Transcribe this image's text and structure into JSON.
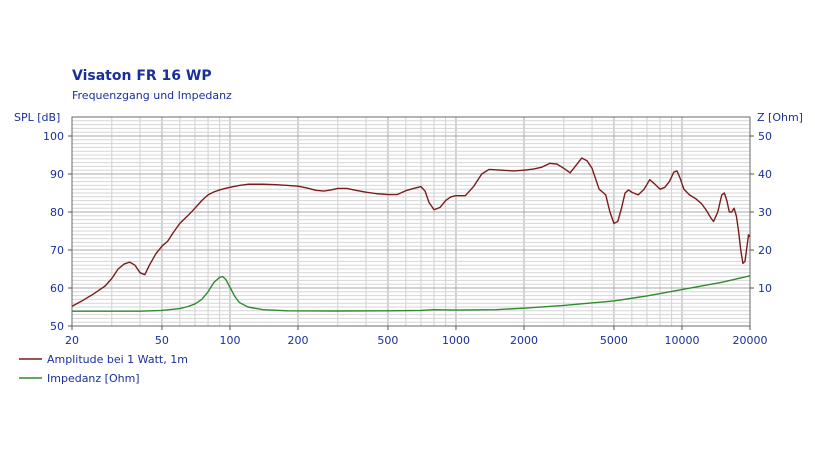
{
  "chart_data": {
    "type": "line",
    "title": "Visaton FR 16 WP",
    "subtitle": "Frequenzgang und Impedanz",
    "ylabel_left": "SPL [dB]",
    "ylabel_right": "Z [Ohm]",
    "x_scale": "log",
    "xlim": [
      20,
      20000
    ],
    "ylim_left": [
      50,
      105
    ],
    "ylim_right": [
      0,
      55
    ],
    "x_ticks": [
      20,
      50,
      100,
      200,
      500,
      1000,
      2000,
      5000,
      10000,
      20000
    ],
    "x_tick_labels": [
      "20",
      "50",
      "100",
      "200",
      "500",
      "1000",
      "2000",
      "5000",
      "10000",
      "20000"
    ],
    "y_ticks_left": [
      50,
      60,
      70,
      80,
      90,
      100
    ],
    "y_tick_labels_left": [
      "50",
      "60",
      "70",
      "80",
      "90",
      "100"
    ],
    "y_ticks_right": [
      10,
      20,
      30,
      40,
      50
    ],
    "y_tick_labels_right": [
      "10",
      "20",
      "30",
      "40",
      "50"
    ],
    "grid": true,
    "legend_position": "bottom-left",
    "series": [
      {
        "name": "Amplitude bei 1 Watt, 1m",
        "axis": "left",
        "color": "#7a1c1c",
        "points": [
          [
            20,
            55.2
          ],
          [
            22,
            56.5
          ],
          [
            25,
            58.5
          ],
          [
            28,
            60.5
          ],
          [
            30,
            62.5
          ],
          [
            32,
            65
          ],
          [
            34,
            66.3
          ],
          [
            36,
            66.8
          ],
          [
            38,
            66
          ],
          [
            40,
            64
          ],
          [
            42,
            63.5
          ],
          [
            44,
            66
          ],
          [
            47,
            69
          ],
          [
            50,
            71
          ],
          [
            53,
            72.3
          ],
          [
            56,
            74.5
          ],
          [
            60,
            77
          ],
          [
            65,
            79
          ],
          [
            70,
            81
          ],
          [
            75,
            83
          ],
          [
            80,
            84.5
          ],
          [
            85,
            85.3
          ],
          [
            90,
            85.8
          ],
          [
            95,
            86.2
          ],
          [
            100,
            86.5
          ],
          [
            110,
            87
          ],
          [
            120,
            87.3
          ],
          [
            140,
            87.3
          ],
          [
            160,
            87.2
          ],
          [
            180,
            87
          ],
          [
            200,
            86.8
          ],
          [
            220,
            86.3
          ],
          [
            240,
            85.7
          ],
          [
            260,
            85.5
          ],
          [
            280,
            85.8
          ],
          [
            300,
            86.2
          ],
          [
            330,
            86.2
          ],
          [
            360,
            85.7
          ],
          [
            400,
            85.2
          ],
          [
            450,
            84.8
          ],
          [
            500,
            84.6
          ],
          [
            550,
            84.6
          ],
          [
            600,
            85.6
          ],
          [
            650,
            86.2
          ],
          [
            700,
            86.7
          ],
          [
            730,
            85.5
          ],
          [
            760,
            82.5
          ],
          [
            800,
            80.6
          ],
          [
            850,
            81.2
          ],
          [
            900,
            83
          ],
          [
            950,
            84
          ],
          [
            1000,
            84.3
          ],
          [
            1100,
            84.3
          ],
          [
            1200,
            86.8
          ],
          [
            1300,
            90
          ],
          [
            1400,
            91.2
          ],
          [
            1600,
            91
          ],
          [
            1800,
            90.8
          ],
          [
            2000,
            91
          ],
          [
            2200,
            91.3
          ],
          [
            2400,
            91.8
          ],
          [
            2600,
            92.8
          ],
          [
            2800,
            92.6
          ],
          [
            3000,
            91.5
          ],
          [
            3200,
            90.3
          ],
          [
            3400,
            92.3
          ],
          [
            3600,
            94.2
          ],
          [
            3800,
            93.5
          ],
          [
            4000,
            91.5
          ],
          [
            4300,
            86
          ],
          [
            4600,
            84.5
          ],
          [
            4800,
            80
          ],
          [
            5000,
            77
          ],
          [
            5200,
            77.5
          ],
          [
            5400,
            81
          ],
          [
            5600,
            85
          ],
          [
            5800,
            85.8
          ],
          [
            6000,
            85.2
          ],
          [
            6400,
            84.5
          ],
          [
            6800,
            86
          ],
          [
            7200,
            88.5
          ],
          [
            7600,
            87.3
          ],
          [
            8000,
            86
          ],
          [
            8400,
            86.5
          ],
          [
            8800,
            88
          ],
          [
            9200,
            90.5
          ],
          [
            9500,
            90.8
          ],
          [
            9800,
            89
          ],
          [
            10200,
            86
          ],
          [
            10800,
            84.5
          ],
          [
            11500,
            83.5
          ],
          [
            12200,
            82.2
          ],
          [
            12800,
            80.5
          ],
          [
            13400,
            78.5
          ],
          [
            13800,
            77.5
          ],
          [
            14400,
            80
          ],
          [
            15000,
            84.5
          ],
          [
            15400,
            85
          ],
          [
            15800,
            83
          ],
          [
            16200,
            80
          ],
          [
            16600,
            80
          ],
          [
            17000,
            81
          ],
          [
            17400,
            79
          ],
          [
            17800,
            75
          ],
          [
            18200,
            70
          ],
          [
            18600,
            66.5
          ],
          [
            19000,
            67
          ],
          [
            19400,
            71
          ],
          [
            19700,
            74
          ],
          [
            20000,
            73.5
          ]
        ]
      },
      {
        "name": "Impedanz [Ohm]",
        "axis": "right",
        "color": "#2e8b2e",
        "points": [
          [
            20,
            3.9
          ],
          [
            30,
            3.9
          ],
          [
            40,
            3.9
          ],
          [
            50,
            4.1
          ],
          [
            60,
            4.6
          ],
          [
            65,
            5.1
          ],
          [
            70,
            5.8
          ],
          [
            75,
            7
          ],
          [
            80,
            9
          ],
          [
            85,
            11.5
          ],
          [
            90,
            12.8
          ],
          [
            93,
            13
          ],
          [
            96,
            12.2
          ],
          [
            100,
            10.2
          ],
          [
            105,
            7.8
          ],
          [
            110,
            6.2
          ],
          [
            120,
            5
          ],
          [
            140,
            4.3
          ],
          [
            180,
            4
          ],
          [
            300,
            3.95
          ],
          [
            500,
            4
          ],
          [
            700,
            4.1
          ],
          [
            800,
            4.3
          ],
          [
            1000,
            4.2
          ],
          [
            1500,
            4.3
          ],
          [
            2000,
            4.7
          ],
          [
            3000,
            5.4
          ],
          [
            5000,
            6.6
          ],
          [
            7000,
            7.9
          ],
          [
            10000,
            9.6
          ],
          [
            15000,
            11.5
          ],
          [
            20000,
            13.2
          ]
        ]
      }
    ]
  }
}
